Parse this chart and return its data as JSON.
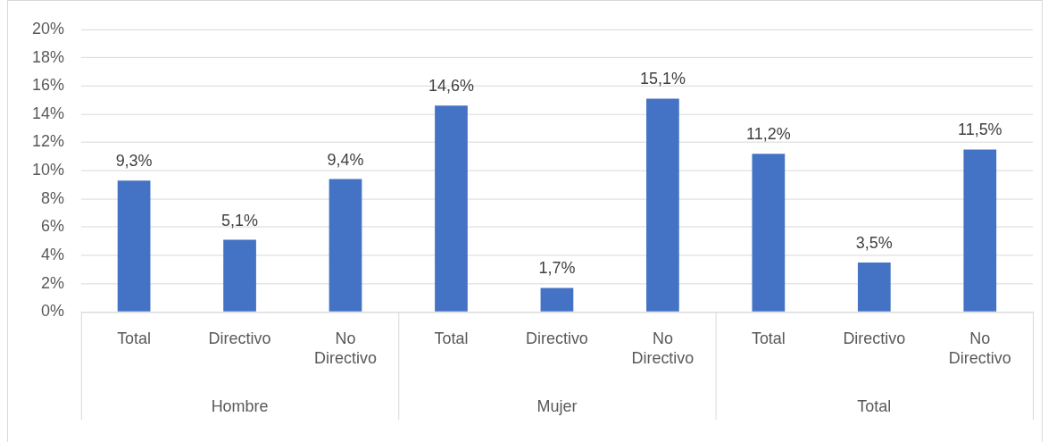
{
  "chart_data": {
    "type": "bar",
    "categories": [
      "Total",
      "Directivo",
      "No Directivo",
      "Total",
      "Directivo",
      "No Directivo",
      "Total",
      "Directivo",
      "No Directivo"
    ],
    "values": [
      9.3,
      5.1,
      9.4,
      14.6,
      1.7,
      15.1,
      11.2,
      3.5,
      11.5
    ],
    "value_labels": [
      "9,3%",
      "5,1%",
      "9,4%",
      "14,6%",
      "1,7%",
      "15,1%",
      "11,2%",
      "3,5%",
      "11,5%"
    ],
    "color": "#4472c4",
    "ylim": [
      0,
      20
    ],
    "yticks": [
      {
        "value": 0,
        "label": "0%"
      },
      {
        "value": 2,
        "label": "2%"
      },
      {
        "value": 4,
        "label": "4%"
      },
      {
        "value": 6,
        "label": "6%"
      },
      {
        "value": 8,
        "label": "8%"
      },
      {
        "value": 10,
        "label": "10%"
      },
      {
        "value": 12,
        "label": "12%"
      },
      {
        "value": 14,
        "label": "14%"
      },
      {
        "value": 16,
        "label": "16%"
      },
      {
        "value": 18,
        "label": "18%"
      },
      {
        "value": 20,
        "label": "20%"
      }
    ],
    "grid": "y",
    "annotations": [
      "Hombre",
      "Mujer",
      "Total"
    ]
  }
}
